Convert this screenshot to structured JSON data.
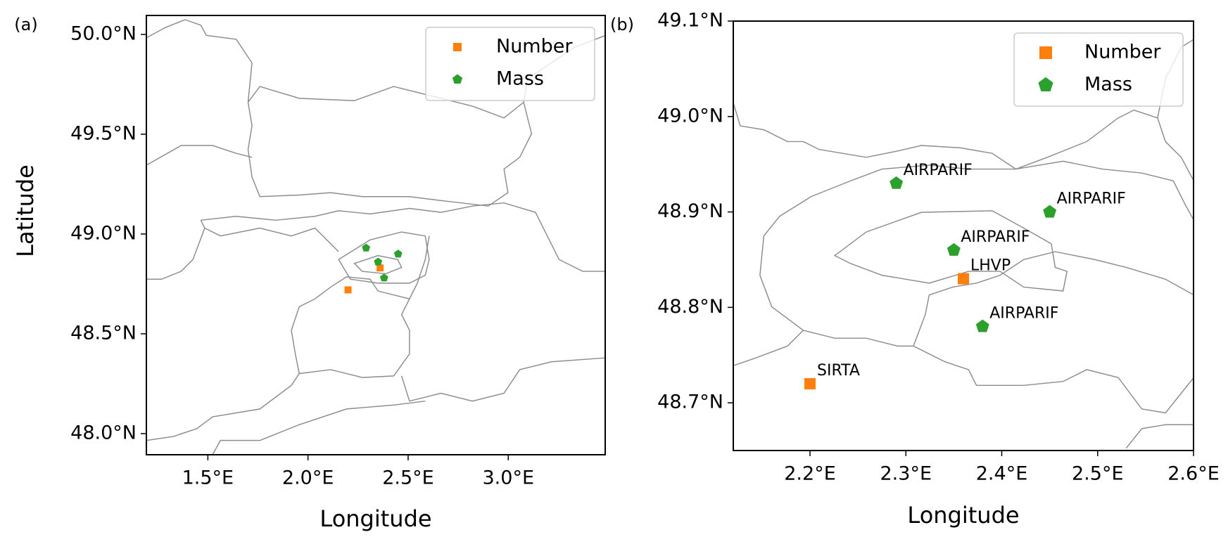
{
  "chart_data": [
    {
      "type": "scatter",
      "panel_label": "(a)",
      "x_label": "Longitude",
      "y_label": "Latitude",
      "xlim": [
        1.193,
        3.484
      ],
      "ylim": [
        47.894,
        50.095
      ],
      "xticks": [
        {
          "value": 1.5,
          "label": "1.5°E"
        },
        {
          "value": 2.0,
          "label": "2.0°E"
        },
        {
          "value": 2.5,
          "label": "2.5°E"
        },
        {
          "value": 3.0,
          "label": "3.0°E"
        }
      ],
      "yticks": [
        {
          "value": 48.0,
          "label": "48.0°N"
        },
        {
          "value": 48.5,
          "label": "48.5°N"
        },
        {
          "value": 49.0,
          "label": "49.0°N"
        },
        {
          "value": 49.5,
          "label": "49.5°N"
        },
        {
          "value": 50.0,
          "label": "50.0°N"
        }
      ],
      "legend": "upper right",
      "series": [
        {
          "name": "Number",
          "color": "#ff7f0e",
          "marker": "square",
          "x": [
            2.2,
            2.36
          ],
          "y": [
            48.72,
            48.83
          ]
        },
        {
          "name": "Mass",
          "color": "#2ca02c",
          "marker": "pentagon",
          "x": [
            2.29,
            2.45,
            2.35,
            2.38
          ],
          "y": [
            48.93,
            48.9,
            48.86,
            48.78
          ]
        }
      ]
    },
    {
      "type": "scatter",
      "panel_label": "(b)",
      "x_label": "Longitude",
      "xlim": [
        2.12,
        2.6
      ],
      "ylim": [
        48.65,
        49.1
      ],
      "xticks": [
        {
          "value": 2.2,
          "label": "2.2°E"
        },
        {
          "value": 2.3,
          "label": "2.3°E"
        },
        {
          "value": 2.4,
          "label": "2.4°E"
        },
        {
          "value": 2.5,
          "label": "2.5°E"
        },
        {
          "value": 2.6,
          "label": "2.6°E"
        }
      ],
      "yticks": [
        {
          "value": 48.7,
          "label": "48.7°N"
        },
        {
          "value": 48.8,
          "label": "48.8°N"
        },
        {
          "value": 48.9,
          "label": "48.9°N"
        },
        {
          "value": 49.0,
          "label": "49.0°N"
        },
        {
          "value": 49.1,
          "label": "49.1°N"
        }
      ],
      "legend": "upper right",
      "series": [
        {
          "name": "Number",
          "color": "#ff7f0e",
          "marker": "square",
          "x": [
            2.2,
            2.36
          ],
          "y": [
            48.72,
            48.83
          ],
          "labels": [
            "SIRTA",
            "LHVP"
          ]
        },
        {
          "name": "Mass",
          "color": "#2ca02c",
          "marker": "pentagon",
          "x": [
            2.29,
            2.45,
            2.35,
            2.38
          ],
          "y": [
            48.93,
            48.9,
            48.86,
            48.78
          ],
          "labels": [
            "AIRPARIF",
            "AIRPARIF",
            "AIRPARIF",
            "AIRPARIF"
          ]
        }
      ]
    }
  ]
}
